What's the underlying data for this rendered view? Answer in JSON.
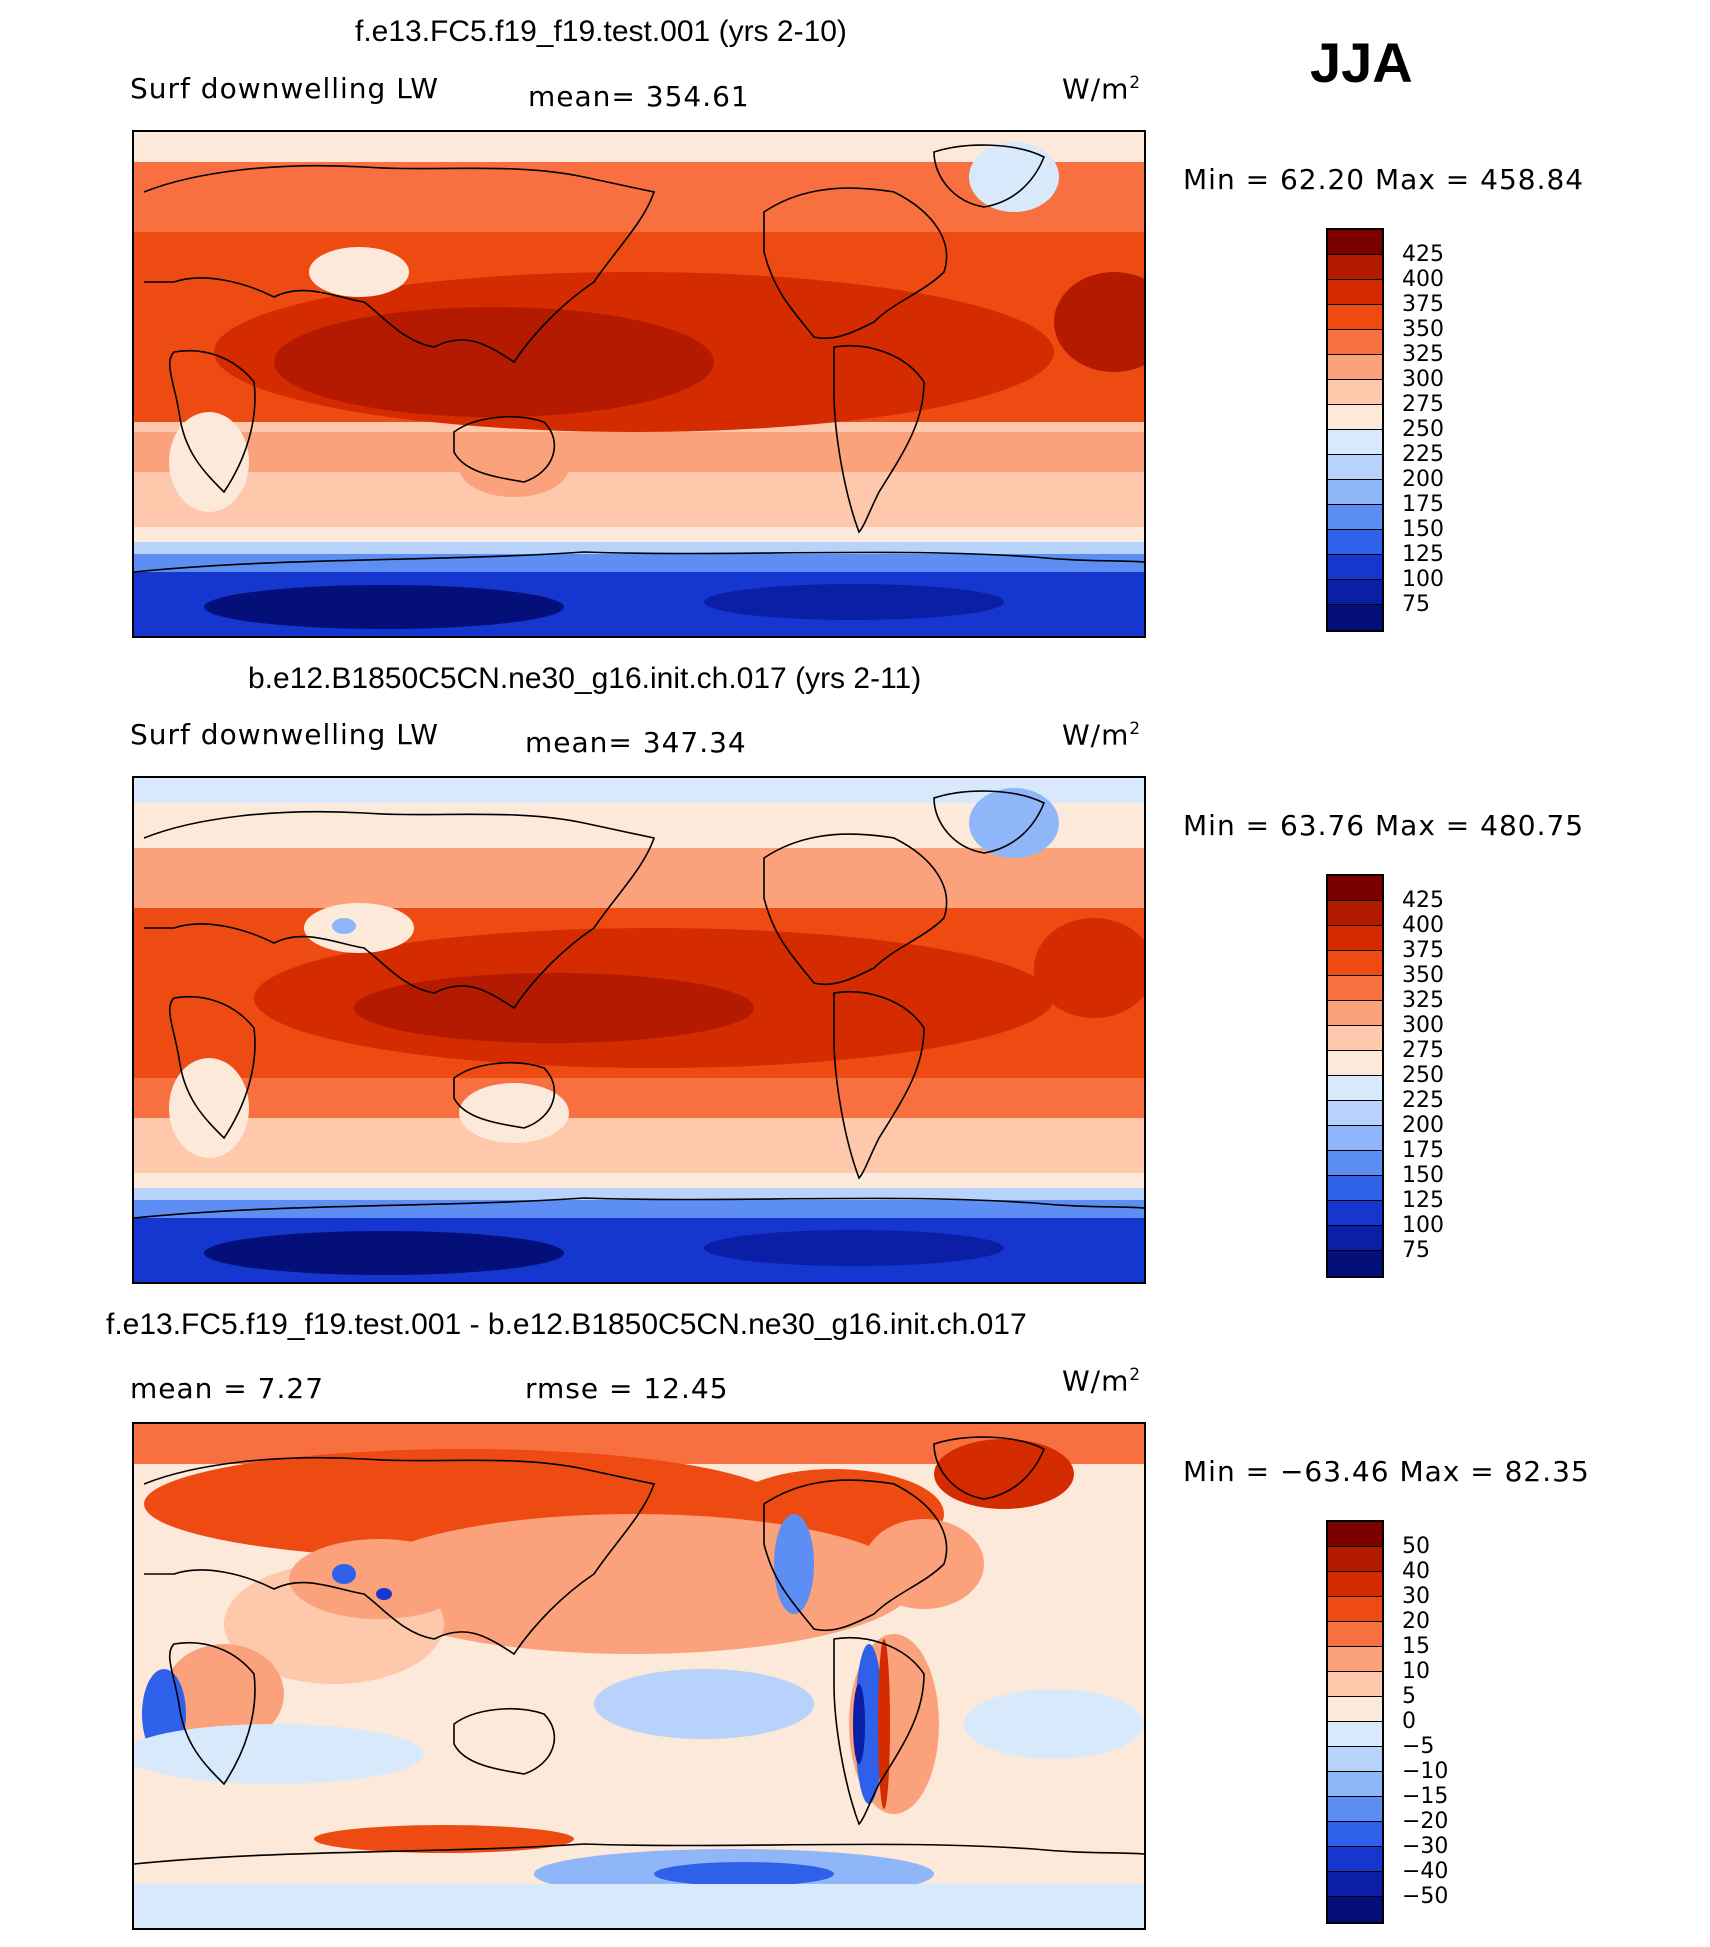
{
  "season": "JJA",
  "panels": [
    {
      "title": "f.e13.FC5.f19_f19.test.001 (yrs 2-10)",
      "variable": "Surf downwelling LW",
      "stat": "mean=  354.61",
      "units_base": "W/m",
      "units_exp": "2",
      "minmax": "Min =   62.20  Max  =  458.84",
      "levels": [
        "425",
        "400",
        "375",
        "350",
        "325",
        "300",
        "275",
        "250",
        "225",
        "200",
        "175",
        "150",
        "125",
        "100",
        "75"
      ]
    },
    {
      "title": "b.e12.B1850C5CN.ne30_g16.init.ch.017 (yrs 2-11)",
      "variable": "Surf downwelling LW",
      "stat": "mean=  347.34",
      "units_base": "W/m",
      "units_exp": "2",
      "minmax": "Min =   63.76  Max  =  480.75",
      "levels": [
        "425",
        "400",
        "375",
        "350",
        "325",
        "300",
        "275",
        "250",
        "225",
        "200",
        "175",
        "150",
        "125",
        "100",
        "75"
      ]
    },
    {
      "title": "f.e13.FC5.f19_f19.test.001 - b.e12.B1850C5CN.ne30_g16.init.ch.017",
      "stat_mean": "mean  =     7.27",
      "stat_rmse": "rmse  =    12.45",
      "units_base": "W/m",
      "units_exp": "2",
      "minmax": "Min  =  −63.46  Max  =    82.35",
      "levels": [
        "50",
        "40",
        "30",
        "20",
        "15",
        "10",
        "5",
        "0",
        "−5",
        "−10",
        "−15",
        "−20",
        "−30",
        "−40",
        "−50"
      ]
    }
  ],
  "colors": {
    "palette": [
      "#7a0000",
      "#b31a00",
      "#d42b00",
      "#ee4b12",
      "#f87040",
      "#fba17c",
      "#fdc8ab",
      "#fde9d9",
      "#d8e9fb",
      "#b7d2fb",
      "#8fb6f8",
      "#5c8ef3",
      "#2f60ea",
      "#1637cf",
      "#0a1ea6",
      "#050f7a"
    ]
  }
}
